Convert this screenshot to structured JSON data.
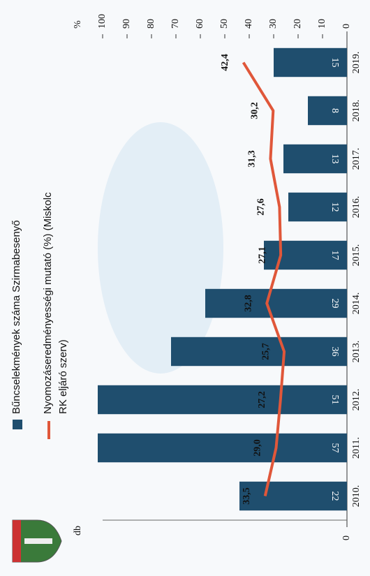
{
  "chart_data": {
    "type": "bar",
    "categories": [
      "2010.",
      "2011.",
      "2012.",
      "2013.",
      "2014.",
      "2015.",
      "2016.",
      "2017.",
      "2018.",
      "2019."
    ],
    "series": [
      {
        "name": "Bűncselekmények száma Szirmabesenyő",
        "color": "#1f4e6e",
        "values": [
          22,
          57,
          51,
          36,
          29,
          17,
          12,
          13,
          8,
          15
        ]
      },
      {
        "name": "Nyomozáseredményességi mutató (%) (Miskolc RK eljáró szerv)",
        "type": "line",
        "axis": "y2",
        "color": "#e0573a",
        "values": [
          33.5,
          29.0,
          27.2,
          25.7,
          32.8,
          27.1,
          27.6,
          31.3,
          30.2,
          42.4
        ],
        "value_labels": [
          "33,5",
          "29,0",
          "27,2",
          "25,7",
          "32,8",
          "27,1",
          "27,6",
          "31,3",
          "30,2",
          "42,4"
        ]
      }
    ],
    "ylabel": "db",
    "ylim": [
      0,
      50
    ],
    "yticks": [
      0
    ],
    "y2label": "%",
    "y2lim": [
      0,
      100
    ],
    "y2ticks": [
      0,
      10,
      20,
      30,
      40,
      50,
      60,
      70,
      80,
      90,
      100
    ]
  }
}
